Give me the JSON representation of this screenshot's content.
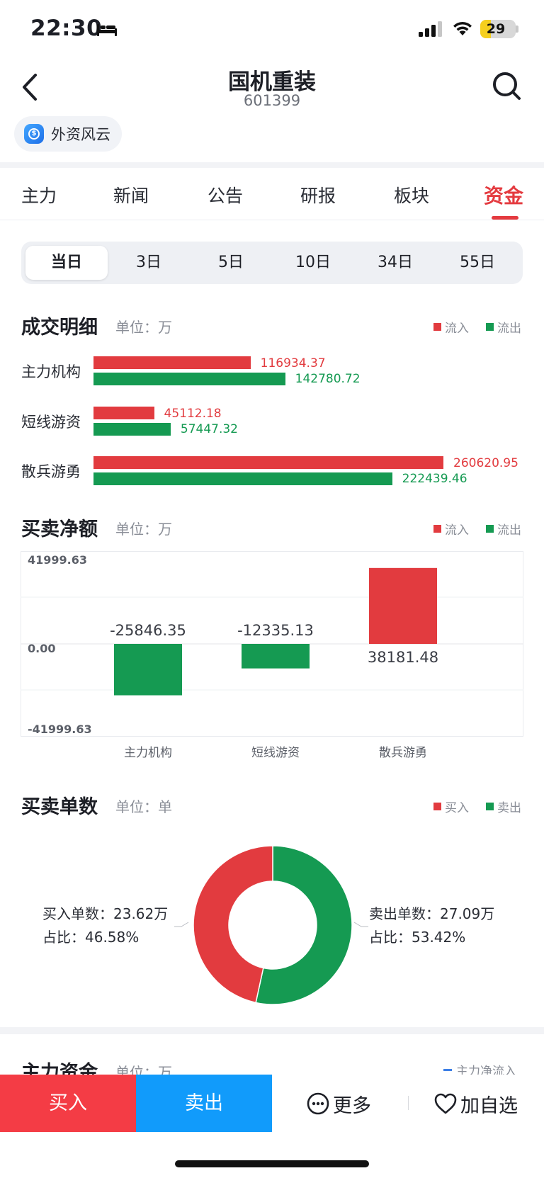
{
  "status_bar": {
    "time": "22:30",
    "battery": "29",
    "battery_level": 0.29
  },
  "header": {
    "stock_name": "国机重装",
    "stock_code": "601399",
    "tag_label": "外资风云"
  },
  "tabs": [
    {
      "label": "主力"
    },
    {
      "label": "新闻"
    },
    {
      "label": "公告"
    },
    {
      "label": "研报"
    },
    {
      "label": "板块"
    },
    {
      "label": "资金",
      "active": true
    }
  ],
  "periods": [
    {
      "label": "当日",
      "active": true
    },
    {
      "label": "3日"
    },
    {
      "label": "5日"
    },
    {
      "label": "10日"
    },
    {
      "label": "34日"
    },
    {
      "label": "55日"
    }
  ],
  "deal_detail": {
    "title": "成交明细",
    "unit": "单位：万",
    "legend_in": "流入",
    "legend_out": "流出",
    "colors": {
      "in": "#e23b3f",
      "out": "#159a52"
    },
    "rows": [
      {
        "label": "主力机构",
        "inflow": 116934.37,
        "outflow": 142780.72,
        "inflow_text": "116934.37",
        "outflow_text": "142780.72"
      },
      {
        "label": "短线游资",
        "inflow": 45112.18,
        "outflow": 57447.32,
        "inflow_text": "45112.18",
        "outflow_text": "57447.32"
      },
      {
        "label": "散兵游勇",
        "inflow": 260620.95,
        "outflow": 222439.46,
        "inflow_text": "260620.95",
        "outflow_text": "222439.46"
      }
    ]
  },
  "net_amount": {
    "title": "买卖净额",
    "unit": "单位：万",
    "legend_in": "流入",
    "legend_out": "流出",
    "chart_data": {
      "type": "bar",
      "categories": [
        "主力机构",
        "短线游资",
        "散兵游勇"
      ],
      "values": [
        -25846.35,
        -12335.13,
        38181.48
      ],
      "value_labels": [
        "-25846.35",
        "-12335.13",
        "38181.48"
      ],
      "ylim": [
        -41999.63,
        41999.63
      ],
      "ytick_labels": [
        "41999.63",
        "0.00",
        "-41999.63"
      ],
      "grid": true
    }
  },
  "order_count": {
    "title": "买卖单数",
    "unit": "单位：单",
    "legend_buy": "买入",
    "legend_sell": "卖出",
    "buy_count_text": "买入单数：23.62万",
    "buy_ratio_text": "占比：46.58%",
    "sell_count_text": "卖出单数：27.09万",
    "sell_ratio_text": "占比：53.42%",
    "chart_data": {
      "type": "pie",
      "categories": [
        "买入",
        "卖出"
      ],
      "values": [
        46.58,
        53.42
      ]
    }
  },
  "main_funds": {
    "title": "主力资金",
    "unit": "单位：万",
    "legend": "主力净流入"
  },
  "bottom_bar": {
    "buy": "买入",
    "sell": "卖出",
    "more": "更多",
    "favorite": "加自选"
  }
}
